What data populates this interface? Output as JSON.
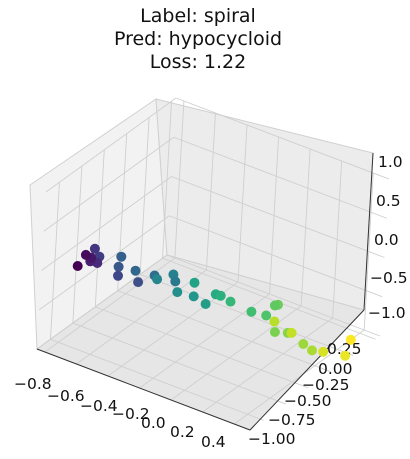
{
  "chart_data": {
    "type": "scatter",
    "projection": "3d",
    "title_lines": [
      "Label: spiral",
      "Pred: hypocycloid",
      "Loss: 1.22"
    ],
    "colormap": "viridis",
    "x_ticks": [
      "−0.8",
      "−0.6",
      "−0.4",
      "−0.2",
      "0.0",
      "0.2",
      "0.4"
    ],
    "y_ticks": [
      "0.25",
      "0.00",
      "−0.25",
      "−0.50",
      "−0.75",
      "−1.00"
    ],
    "z_ticks": [
      "1.0",
      "0.5",
      "0.0",
      "−0.5",
      "−1.0"
    ],
    "grid": true,
    "pane_color": "#f2f2f2",
    "points": [
      {
        "x": -0.92,
        "y": -0.15,
        "z": -0.45,
        "c": 0.0
      },
      {
        "x": -0.82,
        "y": -0.05,
        "z": -0.15,
        "c": 0.03
      },
      {
        "x": -0.76,
        "y": 0.0,
        "z": -0.1,
        "c": 0.06
      },
      {
        "x": -0.7,
        "y": 0.12,
        "z": 0.0,
        "c": 0.09
      },
      {
        "x": -0.64,
        "y": 0.15,
        "z": 0.05,
        "c": 0.12
      },
      {
        "x": -0.58,
        "y": 0.3,
        "z": 0.4,
        "c": 0.15
      },
      {
        "x": -0.56,
        "y": 0.28,
        "z": 0.3,
        "c": 0.18
      },
      {
        "x": -0.48,
        "y": 0.2,
        "z": 0.05,
        "c": 0.21
      },
      {
        "x": -0.62,
        "y": -0.3,
        "z": -0.55,
        "c": 0.24
      },
      {
        "x": -0.4,
        "y": 0.35,
        "z": 0.35,
        "c": 0.27
      },
      {
        "x": -0.36,
        "y": 0.4,
        "z": 0.55,
        "c": 0.3
      },
      {
        "x": -0.32,
        "y": 0.3,
        "z": 0.32,
        "c": 0.33
      },
      {
        "x": -0.2,
        "y": 0.3,
        "z": 0.35,
        "c": 0.36
      },
      {
        "x": -0.08,
        "y": 0.28,
        "z": 0.35,
        "c": 0.4
      },
      {
        "x": -0.02,
        "y": 0.42,
        "z": 0.6,
        "c": 0.43
      },
      {
        "x": -0.45,
        "y": -0.2,
        "z": -0.3,
        "c": 0.46
      },
      {
        "x": -0.4,
        "y": -0.35,
        "z": -0.55,
        "c": 0.49
      },
      {
        "x": -0.35,
        "y": -0.45,
        "z": -0.65,
        "c": 0.52
      },
      {
        "x": -0.3,
        "y": -0.5,
        "z": -0.75,
        "c": 0.55
      },
      {
        "x": 0.05,
        "y": 0.3,
        "z": 0.45,
        "c": 0.58
      },
      {
        "x": -0.4,
        "y": -0.8,
        "z": -0.95,
        "c": 0.61
      },
      {
        "x": -0.38,
        "y": -0.82,
        "z": -0.97,
        "c": 0.63
      },
      {
        "x": 0.2,
        "y": 0.15,
        "z": 0.2,
        "c": 0.66
      },
      {
        "x": 0.28,
        "y": 0.05,
        "z": 0.05,
        "c": 0.69
      },
      {
        "x": 0.32,
        "y": -0.05,
        "z": -0.05,
        "c": 0.72
      },
      {
        "x": 0.45,
        "y": 0.1,
        "z": 0.3,
        "c": 0.75
      },
      {
        "x": 0.48,
        "y": 0.12,
        "z": 0.35,
        "c": 0.77
      },
      {
        "x": 0.3,
        "y": -0.2,
        "z": -0.4,
        "c": 0.8
      },
      {
        "x": 0.38,
        "y": -0.2,
        "z": -0.35,
        "c": 0.82
      },
      {
        "x": 0.4,
        "y": -0.35,
        "z": -0.6,
        "c": 0.85
      },
      {
        "x": 0.43,
        "y": -0.4,
        "z": -0.7,
        "c": 0.87
      },
      {
        "x": 0.0,
        "y": -0.75,
        "z": -0.95,
        "c": 0.89
      },
      {
        "x": 0.18,
        "y": -0.62,
        "z": -0.85,
        "c": 0.91
      },
      {
        "x": 0.42,
        "y": -0.55,
        "z": -0.85,
        "c": 0.94
      },
      {
        "x": 0.52,
        "y": -0.62,
        "z": -0.88,
        "c": 0.97
      },
      {
        "x": 0.4,
        "y": -0.9,
        "z": -1.0,
        "c": 1.0
      }
    ]
  }
}
